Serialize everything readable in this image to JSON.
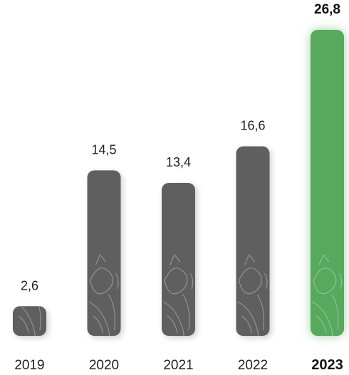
{
  "chart_data": {
    "type": "bar",
    "categories": [
      "2019",
      "2020",
      "2021",
      "2022",
      "2023"
    ],
    "values": [
      2.6,
      14.5,
      13.4,
      16.6,
      26.8
    ],
    "value_labels": [
      "2,6",
      "14,5",
      "13,4",
      "16,6",
      "26,8"
    ],
    "highlight_index": 4,
    "ylim": [
      0,
      26.8
    ],
    "grid": false,
    "legend": "none",
    "colors": {
      "bar": "#5f5f5f",
      "highlight": "#58a85d",
      "text": "#1f1f1f"
    }
  }
}
